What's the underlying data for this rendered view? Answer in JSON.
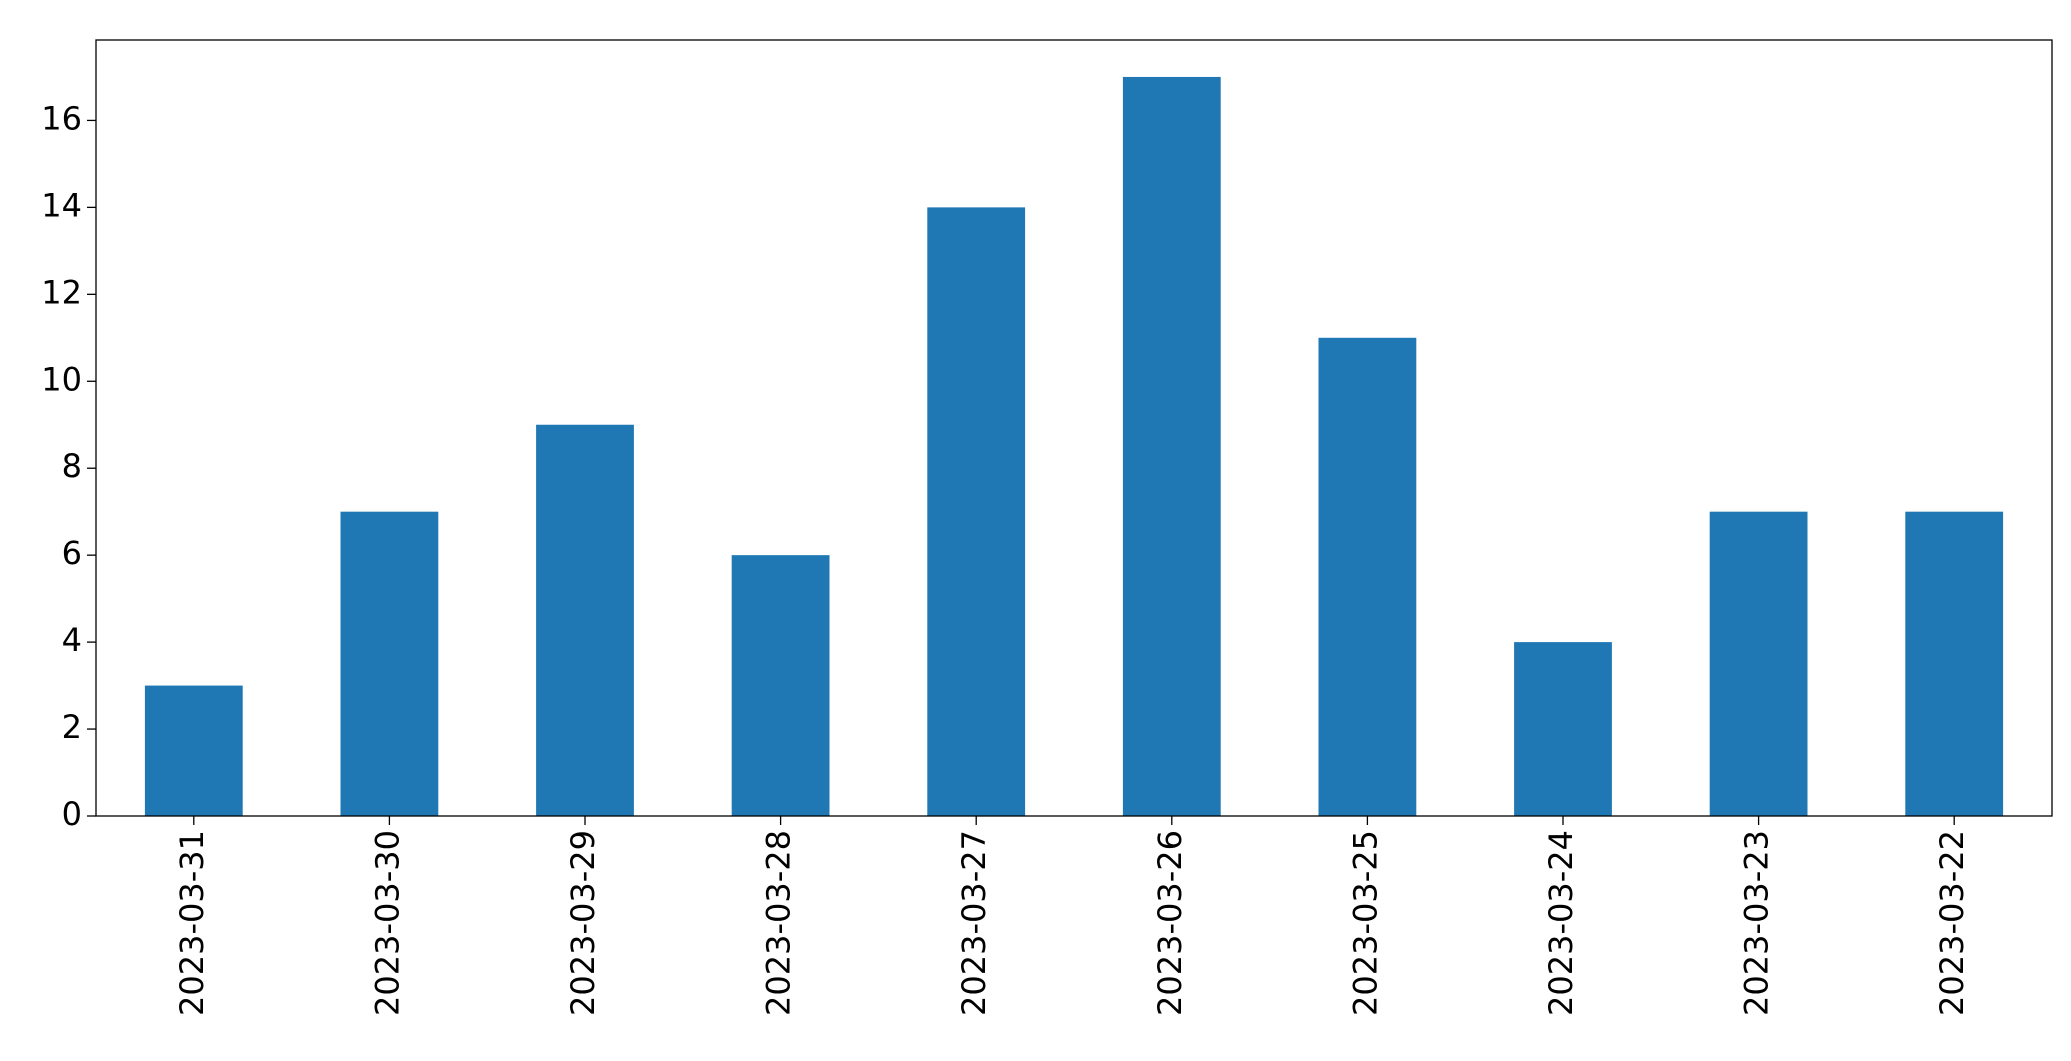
{
  "chart_data": {
    "type": "bar",
    "categories": [
      "2023-03-31",
      "2023-03-30",
      "2023-03-29",
      "2023-03-28",
      "2023-03-27",
      "2023-03-26",
      "2023-03-25",
      "2023-03-24",
      "2023-03-23",
      "2023-03-22"
    ],
    "values": [
      3,
      7,
      9,
      6,
      14,
      17,
      11,
      4,
      7,
      7
    ],
    "color": "#1f77b4",
    "ylim": [
      0,
      17.85
    ],
    "yticks": [
      0,
      2,
      4,
      6,
      8,
      10,
      12,
      14,
      16
    ],
    "grid": false
  }
}
